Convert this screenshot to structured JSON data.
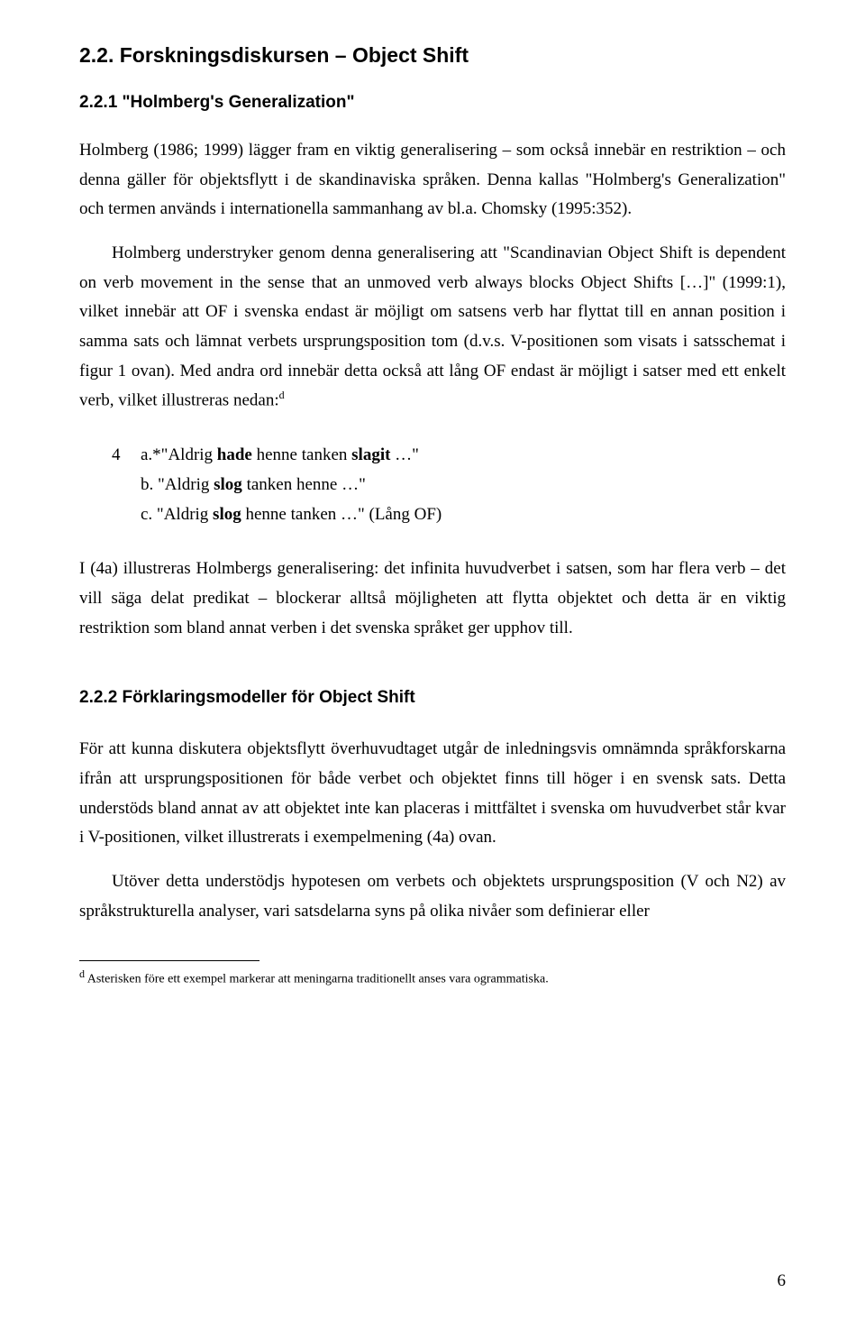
{
  "heading_main": "2.2. Forskningsdiskursen – Object Shift",
  "heading_sub1": "2.2.1 \"Holmberg's Generalization\"",
  "para1": "Holmberg (1986; 1999) lägger fram en viktig generalisering – som också innebär en restriktion – och denna gäller för objektsflytt i de skandinaviska språken. Denna kallas \"Holmberg's Generalization\" och termen används i internationella sammanhang av bl.a. Chomsky (1995:352).",
  "para2_a": "Holmberg understryker genom denna generalisering att \"Scandinavian Object Shift is dependent on verb movement in the sense that an unmoved verb always blocks Object Shifts […]\" (1999:1), vilket innebär att OF i svenska endast är möjligt om satsens verb har flyttat till en annan position i samma sats och lämnat verbets ursprungsposition tom (d.v.s. V-positionen som visats i satsschemat i figur 1 ovan). Med andra ord innebär detta också att lång OF endast är möjligt i satser med ett enkelt verb, vilket illustreras nedan:",
  "sup_d": "d",
  "ex_num": "4",
  "ex_a_pre": "a.*\"Aldrig ",
  "ex_a_b1": "hade",
  "ex_a_mid": " henne tanken ",
  "ex_a_b2": "slagit",
  "ex_a_post": " …\"",
  "ex_b_pre": "b. \"Aldrig ",
  "ex_b_b": "slog",
  "ex_b_post": " tanken henne …\"",
  "ex_c_pre": "c. \"Aldrig ",
  "ex_c_b": "slog",
  "ex_c_post": " henne tanken …\" (Lång OF)",
  "para3": "I (4a) illustreras Holmbergs generalisering: det infinita huvudverbet i satsen, som har flera verb – det vill säga delat predikat – blockerar alltså möjligheten att flytta objektet och detta är en viktig restriktion som bland annat verben i det svenska språket ger upphov till.",
  "heading_sub2": "2.2.2 Förklaringsmodeller för Object Shift",
  "para4": "För att kunna diskutera objektsflytt överhuvudtaget utgår de inledningsvis omnämnda språkforskarna ifrån att ursprungspositionen för både verbet och objektet finns till höger i en svensk sats. Detta understöds bland annat av att objektet inte kan placeras i mittfältet i svenska om huvudverbet står kvar i V-positionen, vilket illustrerats i exempelmening (4a) ovan.",
  "para5": "Utöver detta understödjs hypotesen om verbets och objektets ursprungsposition (V och N2) av språkstrukturella analyser, vari satsdelarna syns på olika nivåer som definierar eller",
  "footnote_sup": "d",
  "footnote_text": " Asterisken före ett exempel markerar att meningarna traditionellt anses vara ogrammatiska.",
  "page_number": "6"
}
